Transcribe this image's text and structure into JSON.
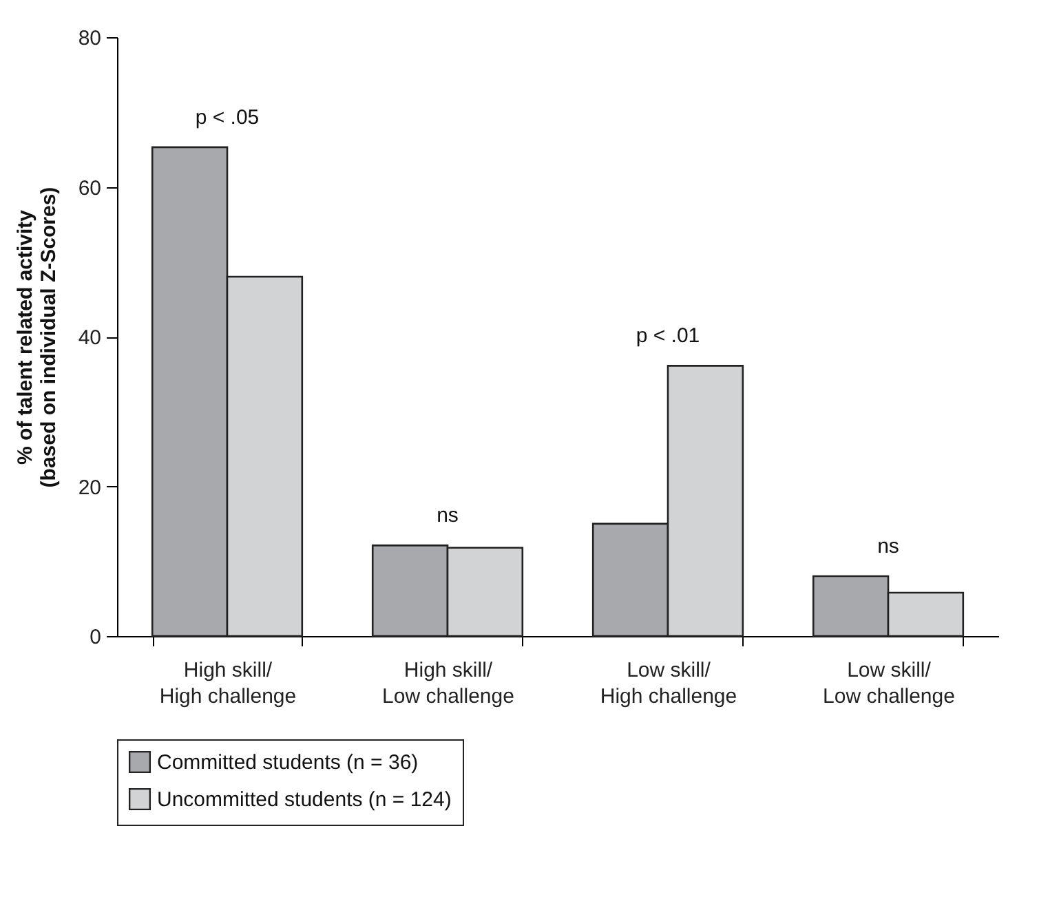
{
  "chart_data": {
    "type": "bar",
    "ylabel": "% of talent related activity\n(based on individual Z-Scores)",
    "categories": [
      "High skill/\nHigh challenge",
      "High skill/\nLow challenge",
      "Low skill/\nHigh challenge",
      "Low skill/\nLow challenge"
    ],
    "series": [
      {
        "name": "Committed students (n = 36)",
        "color": "#a8a9ad",
        "values": [
          65.3,
          12.1,
          15.0,
          8.0
        ]
      },
      {
        "name": "Uncommitted students (n = 124)",
        "color": "#d2d3d5",
        "values": [
          48.0,
          11.8,
          36.1,
          5.8
        ]
      }
    ],
    "ylim": [
      0,
      80
    ],
    "yticks": [
      0,
      20,
      40,
      60,
      80
    ],
    "grid": false,
    "legend": "bottom",
    "annotations": [
      "p < .05",
      "ns",
      "p < .01",
      "ns"
    ]
  }
}
